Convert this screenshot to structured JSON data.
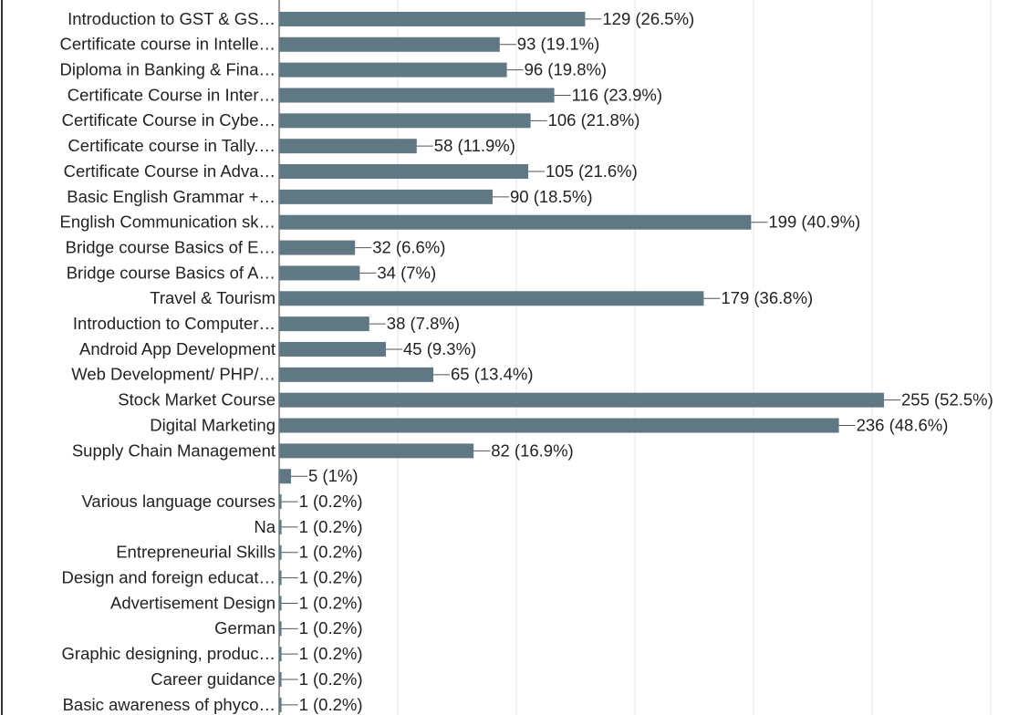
{
  "chart_data": {
    "type": "bar",
    "orientation": "horizontal",
    "color": "#607884",
    "categories": [
      "Introduction to GST & GS…",
      "Certificate course in Intelle…",
      "Diploma in Banking & Fina…",
      "Certificate Course in Inter…",
      "Certificate Course in Cybe…",
      "Certificate course in Tally.…",
      "Certificate Course in Adva…",
      "Basic English Grammar +…",
      "English Communication sk…",
      "Bridge course Basics of E…",
      "Bridge course Basics of A…",
      "Travel & Tourism",
      "Introduction to Computer…",
      "Android App Development",
      "Web Development/ PHP/…",
      "Stock Market Course",
      "Digital Marketing",
      "Supply Chain Management",
      null,
      "Various language courses",
      "Na",
      "Entrepreneurial Skills",
      "Design and foreign educat…",
      "Advertisement Design",
      "German",
      "Graphic designing, produc…",
      "Career guidance",
      "Basic awareness of phyco…"
    ],
    "values": [
      129,
      93,
      96,
      116,
      106,
      58,
      105,
      90,
      199,
      32,
      34,
      179,
      38,
      45,
      65,
      255,
      236,
      82,
      5,
      1,
      1,
      1,
      1,
      1,
      1,
      1,
      1,
      1
    ],
    "value_labels": [
      "129 (26.5%)",
      "93 (19.1%)",
      "96 (19.8%)",
      "116 (23.9%)",
      "106 (21.8%)",
      "58 (11.9%)",
      "105 (21.6%)",
      "90 (18.5%)",
      "199 (40.9%)",
      "32 (6.6%)",
      "34 (7%)",
      "179 (36.8%)",
      "38 (7.8%)",
      "45 (9.3%)",
      "65 (13.4%)",
      "255 (52.5%)",
      "236 (48.6%)",
      "82 (16.9%)",
      "5 (1%)",
      "1 (0.2%)",
      "1 (0.2%)",
      "1 (0.2%)",
      "1 (0.2%)",
      "1 (0.2%)",
      "1 (0.2%)",
      "1 (0.2%)",
      "1 (0.2%)",
      "1 (0.2%)"
    ],
    "xlim": [
      0,
      311
    ],
    "xticks": [
      0,
      50,
      100,
      150,
      200,
      250,
      300
    ],
    "grid": true
  }
}
